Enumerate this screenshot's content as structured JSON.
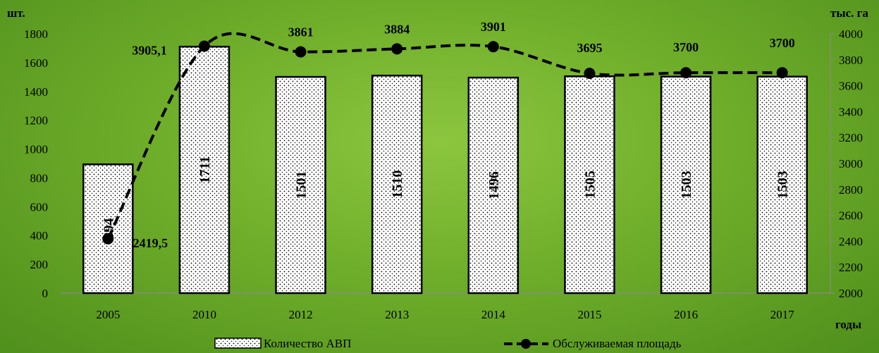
{
  "chart_data": {
    "type": "bar",
    "categories": [
      "2005",
      "2010",
      "2012",
      "2013",
      "2014",
      "2015",
      "2016",
      "2017"
    ],
    "series": [
      {
        "name": "Количество АВП",
        "type": "bar",
        "axis": "left",
        "values": [
          894,
          1711,
          1501,
          1510,
          1496,
          1505,
          1503,
          1503
        ],
        "labels": [
          "894",
          "1711",
          "1501",
          "1510",
          "1496",
          "1505",
          "1503",
          "1503"
        ]
      },
      {
        "name": "Обслуживаемая площадь",
        "type": "line",
        "axis": "right",
        "style": "dashed",
        "values": [
          2419.5,
          3905.1,
          3861,
          3884,
          3901,
          3695,
          3700,
          3700
        ],
        "labels": [
          "2419,5",
          "3905,1",
          "3861",
          "3884",
          "3901",
          "3695",
          "3700",
          "3700"
        ]
      }
    ],
    "y_left": {
      "label": "шт.",
      "range": [
        0,
        1800
      ],
      "ticks": [
        "0",
        "200",
        "400",
        "600",
        "800",
        "1000",
        "1200",
        "1400",
        "1600",
        "1800"
      ]
    },
    "y_right": {
      "label": "тыс. га",
      "range": [
        2000,
        4000
      ],
      "ticks": [
        "2000",
        "2200",
        "2400",
        "2600",
        "2800",
        "3000",
        "3200",
        "3400",
        "3600",
        "3800",
        "4000"
      ]
    },
    "xlabel": "годы",
    "grid": false,
    "legend_position": "bottom",
    "colors": {
      "background": "#6fae2a",
      "bar_fill": "#ffffff",
      "bar_pattern": "#000000",
      "line": "#000000"
    }
  }
}
